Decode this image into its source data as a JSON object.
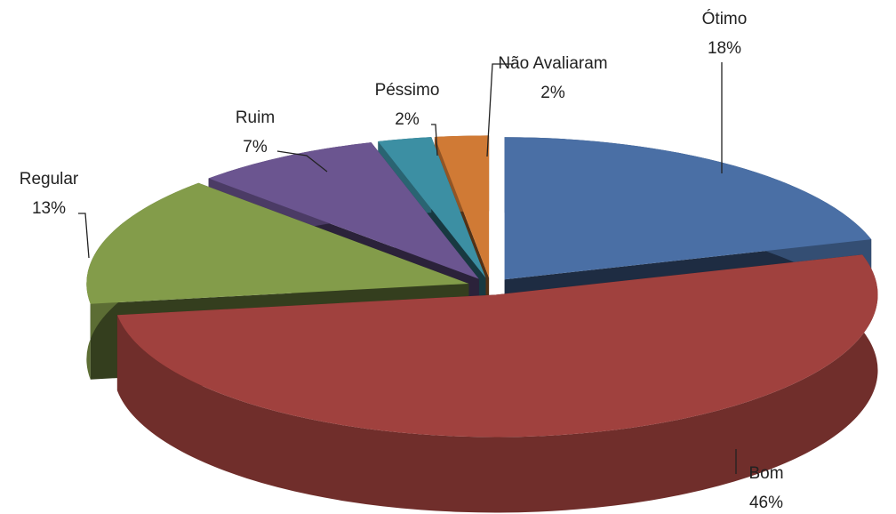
{
  "chart_data": {
    "type": "pie",
    "categories": [
      "Ótimo",
      "Bom",
      "Regular",
      "Ruim",
      "Péssimo",
      "Não Avaliaram"
    ],
    "values": [
      18,
      46,
      13,
      7,
      2,
      2
    ],
    "value_labels": [
      "18%",
      "46%",
      "13%",
      "7%",
      "2%",
      "2%"
    ],
    "colors": [
      "#4a6fa5",
      "#a0413e",
      "#839c4a",
      "#6b5590",
      "#3c8fa3",
      "#d07a35"
    ]
  }
}
